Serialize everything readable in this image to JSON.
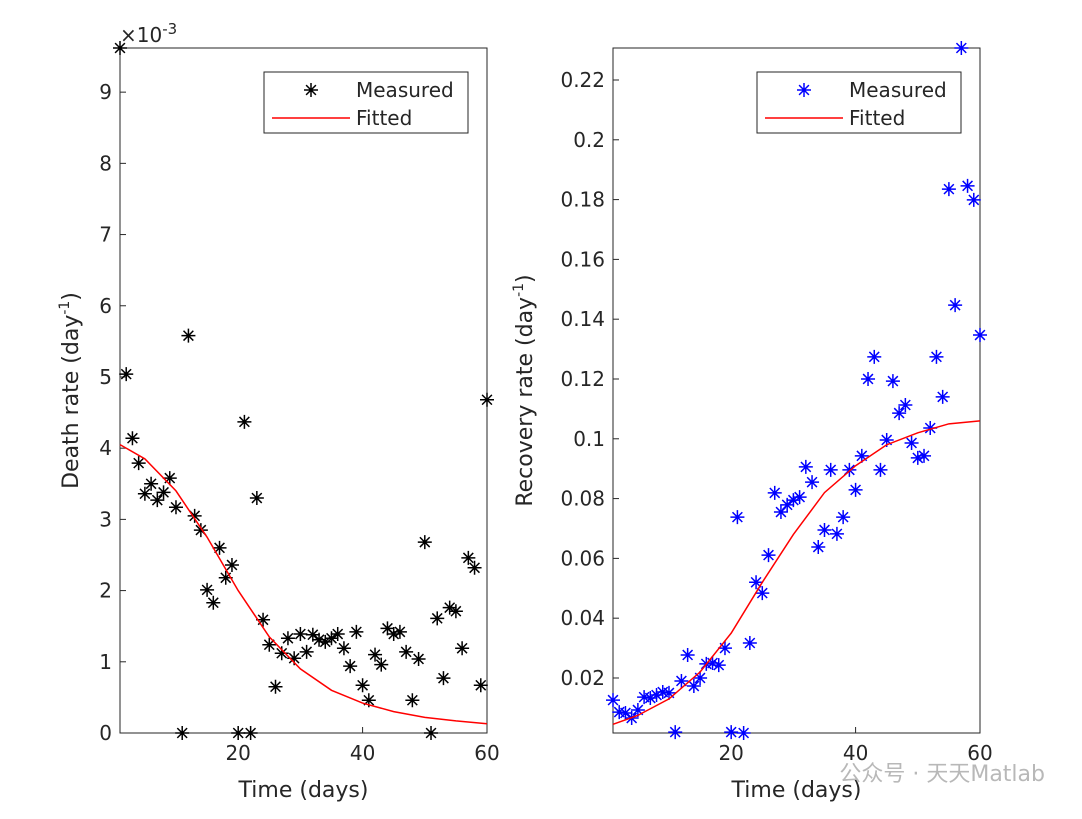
{
  "chart_data": [
    {
      "type": "scatter",
      "xlabel": "Time (days)",
      "ylabel": "Death rate (day",
      "ylabel_sup": "-1",
      "ylabel_end": ")",
      "exponent_base": "×10",
      "exponent": "-3",
      "xlim": [
        1,
        60
      ],
      "ylim": [
        0,
        9.62
      ],
      "xticks": [
        20,
        40,
        60
      ],
      "yticks": [
        0,
        1,
        2,
        3,
        4,
        5,
        6,
        7,
        8,
        9
      ],
      "legend": "upper right",
      "series": [
        {
          "name": "Measured",
          "color": "#000000",
          "marker": "*",
          "x": [
            1,
            2,
            3,
            4,
            5,
            6,
            7,
            8,
            9,
            10,
            11,
            12,
            13,
            14,
            15,
            16,
            17,
            18,
            19,
            20,
            21,
            22,
            23,
            24,
            25,
            26,
            27,
            28,
            29,
            30,
            31,
            32,
            33,
            34,
            35,
            36,
            37,
            38,
            39,
            40,
            41,
            42,
            43,
            44,
            45,
            46,
            47,
            48,
            49,
            50,
            51,
            52,
            53,
            54,
            55,
            56,
            57,
            58,
            59,
            60
          ],
          "values": [
            9.62,
            5.04,
            4.14,
            3.79,
            3.36,
            3.5,
            3.27,
            3.38,
            3.58,
            3.17,
            0,
            5.58,
            3.05,
            2.85,
            2.01,
            1.83,
            2.6,
            2.18,
            2.36,
            0,
            4.37,
            0,
            3.3,
            1.59,
            1.24,
            0.65,
            1.12,
            1.33,
            1.05,
            1.39,
            1.14,
            1.38,
            1.31,
            1.28,
            1.33,
            1.39,
            1.19,
            0.94,
            1.42,
            0.67,
            0.46,
            1.1,
            0.96,
            1.47,
            1.39,
            1.42,
            1.14,
            0.46,
            1.04,
            2.68,
            0,
            1.61,
            0.77,
            1.76,
            1.71,
            1.19,
            2.46,
            2.32,
            0.67,
            4.68
          ]
        },
        {
          "name": "Fitted",
          "color": "#ff0000",
          "marker": "line",
          "x": [
            1,
            5,
            10,
            15,
            20,
            25,
            30,
            35,
            40,
            45,
            50,
            55,
            60
          ],
          "values": [
            4.05,
            3.85,
            3.4,
            2.75,
            2.0,
            1.35,
            0.9,
            0.6,
            0.42,
            0.3,
            0.22,
            0.17,
            0.13
          ]
        }
      ]
    },
    {
      "type": "scatter",
      "xlabel": "Time (days)",
      "ylabel": "Recovery rate (day",
      "ylabel_sup": "-1",
      "ylabel_end": ")",
      "xlim": [
        1,
        60
      ],
      "ylim": [
        0.0016,
        0.2307
      ],
      "xticks": [
        20,
        40,
        60
      ],
      "yticks": [
        0.02,
        0.04,
        0.06,
        0.08,
        0.1,
        0.12,
        0.14,
        0.16,
        0.18,
        0.2,
        0.22
      ],
      "legend": "upper right",
      "series": [
        {
          "name": "Measured",
          "color": "#0000ff",
          "marker": "*",
          "x": [
            1,
            2,
            3,
            4,
            5,
            6,
            7,
            8,
            9,
            10,
            11,
            12,
            13,
            14,
            15,
            16,
            17,
            18,
            19,
            20,
            21,
            22,
            23,
            24,
            25,
            26,
            27,
            28,
            29,
            30,
            31,
            32,
            33,
            34,
            35,
            36,
            37,
            38,
            39,
            40,
            41,
            42,
            43,
            44,
            45,
            46,
            47,
            48,
            49,
            50,
            51,
            52,
            53,
            54,
            55,
            56,
            57,
            58,
            59,
            60
          ],
          "values": [
            0.0126,
            0.0086,
            0.0083,
            0.0066,
            0.0093,
            0.0136,
            0.0133,
            0.0143,
            0.0153,
            0.015,
            0.0019,
            0.019,
            0.0277,
            0.0173,
            0.02,
            0.0247,
            0.025,
            0.0243,
            0.03,
            0.0019,
            0.0738,
            0.0016,
            0.0317,
            0.052,
            0.0484,
            0.0611,
            0.0819,
            0.0755,
            0.0779,
            0.0795,
            0.0805,
            0.0906,
            0.0855,
            0.0638,
            0.0695,
            0.0896,
            0.0682,
            0.0738,
            0.0896,
            0.0829,
            0.0943,
            0.12,
            0.1274,
            0.0896,
            0.0996,
            0.1193,
            0.1086,
            0.1113,
            0.0986,
            0.0936,
            0.0943,
            0.1036,
            0.1274,
            0.114,
            0.1835,
            0.1447,
            0.2307,
            0.1846,
            0.1799,
            0.1347
          ]
        },
        {
          "name": "Fitted",
          "color": "#ff0000",
          "marker": "line",
          "x": [
            1,
            5,
            10,
            15,
            20,
            25,
            30,
            35,
            40,
            45,
            50,
            55,
            60
          ],
          "values": [
            0.0045,
            0.0075,
            0.013,
            0.022,
            0.035,
            0.052,
            0.068,
            0.082,
            0.091,
            0.098,
            0.102,
            0.105,
            0.106
          ]
        }
      ]
    }
  ],
  "watermark": "公众号 · 天天Matlab"
}
